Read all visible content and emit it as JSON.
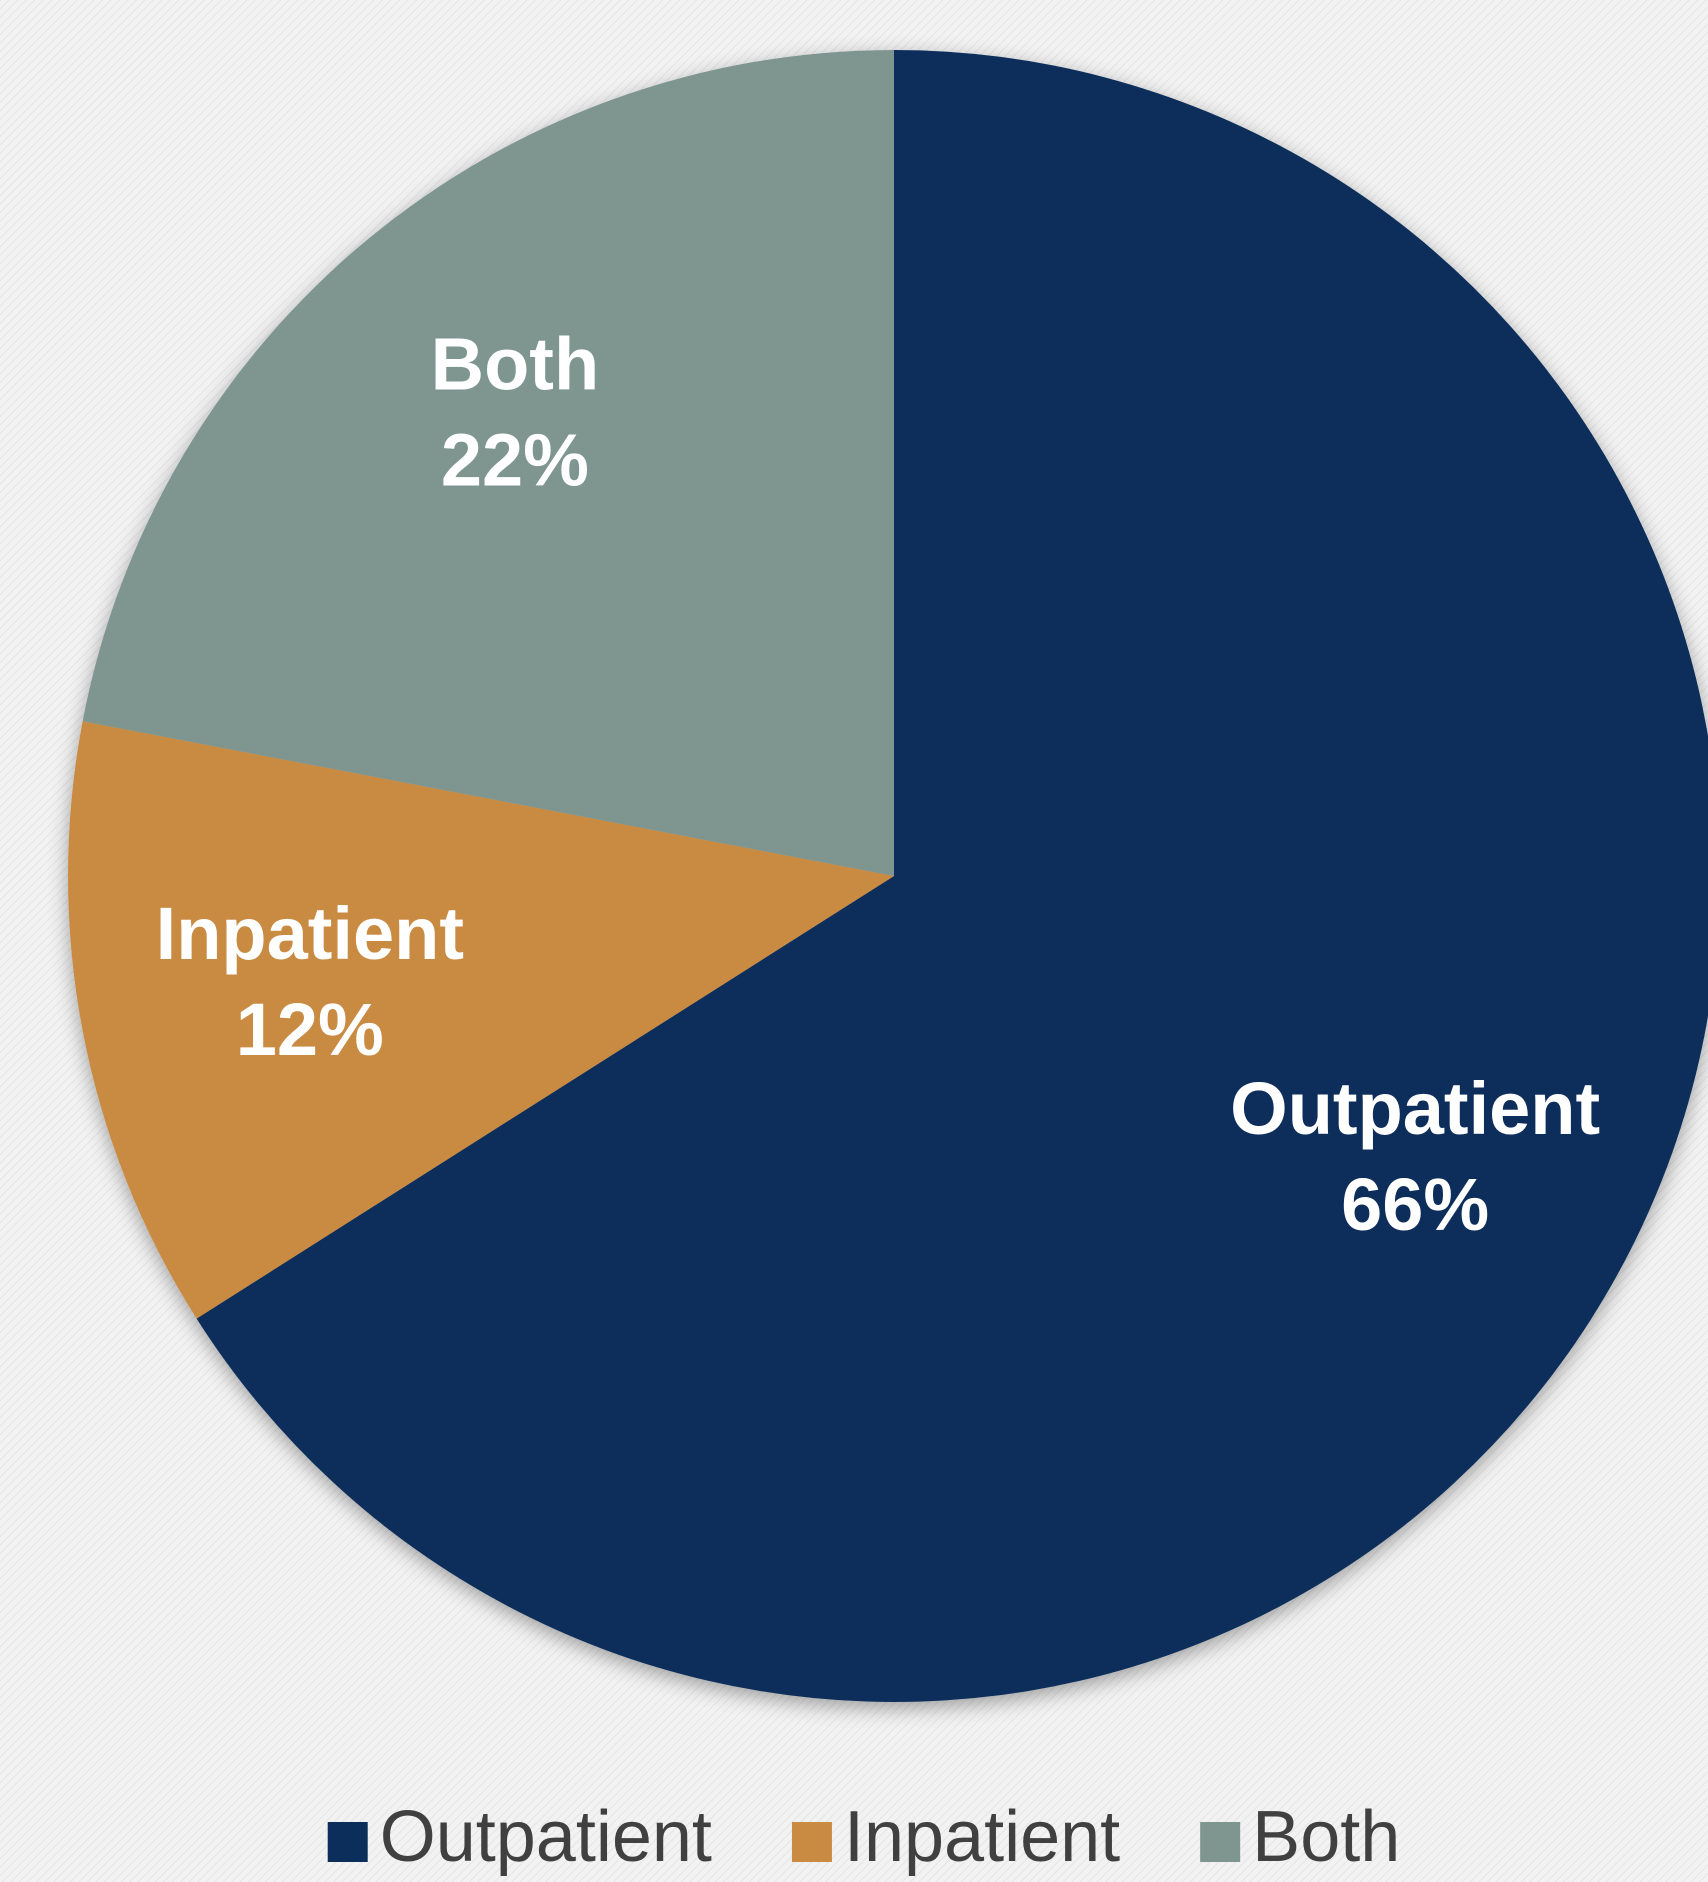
{
  "chart_data": {
    "type": "pie",
    "categories": [
      "Outpatient",
      "Inpatient",
      "Both"
    ],
    "values": [
      66,
      12,
      22
    ],
    "value_labels": [
      "66%",
      "12%",
      "22%"
    ],
    "colors": [
      "#0b2f5a",
      "#c98a42",
      "#7f9690"
    ],
    "legend": "bottom"
  }
}
